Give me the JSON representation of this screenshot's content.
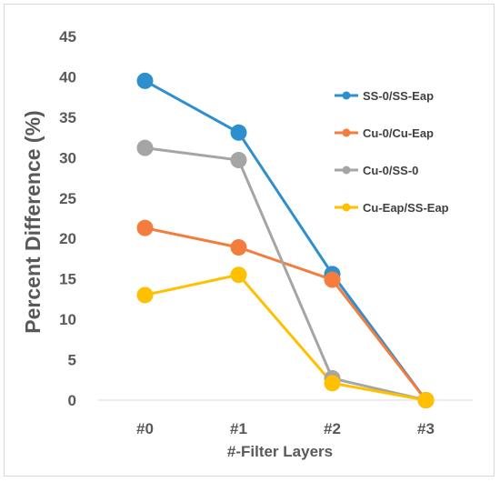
{
  "chart_data": {
    "type": "line",
    "categories": [
      "#0",
      "#1",
      "#2",
      "#3"
    ],
    "xlabel": "#-Filter Layers",
    "ylabel": "Percent Difference (%)",
    "ylim": [
      0,
      45
    ],
    "yticks": [
      "0",
      "5",
      "10",
      "15",
      "20",
      "25",
      "30",
      "35",
      "40",
      "45"
    ],
    "grid": false,
    "legend_position": "right",
    "series": [
      {
        "name": "SS-0/SS-Eap",
        "color": "#2e8fce",
        "values": [
          39.5,
          33.1,
          15.6,
          0
        ]
      },
      {
        "name": "Cu-0/Cu-Eap",
        "color": "#f47c3c",
        "values": [
          21.3,
          18.9,
          14.9,
          0
        ]
      },
      {
        "name": "Cu-0/SS-0",
        "color": "#a5a5a5",
        "values": [
          31.2,
          29.7,
          2.7,
          0
        ]
      },
      {
        "name": "Cu-Eap/SS-Eap",
        "color": "#ffc000",
        "values": [
          13.0,
          15.5,
          2.1,
          0
        ]
      }
    ]
  }
}
